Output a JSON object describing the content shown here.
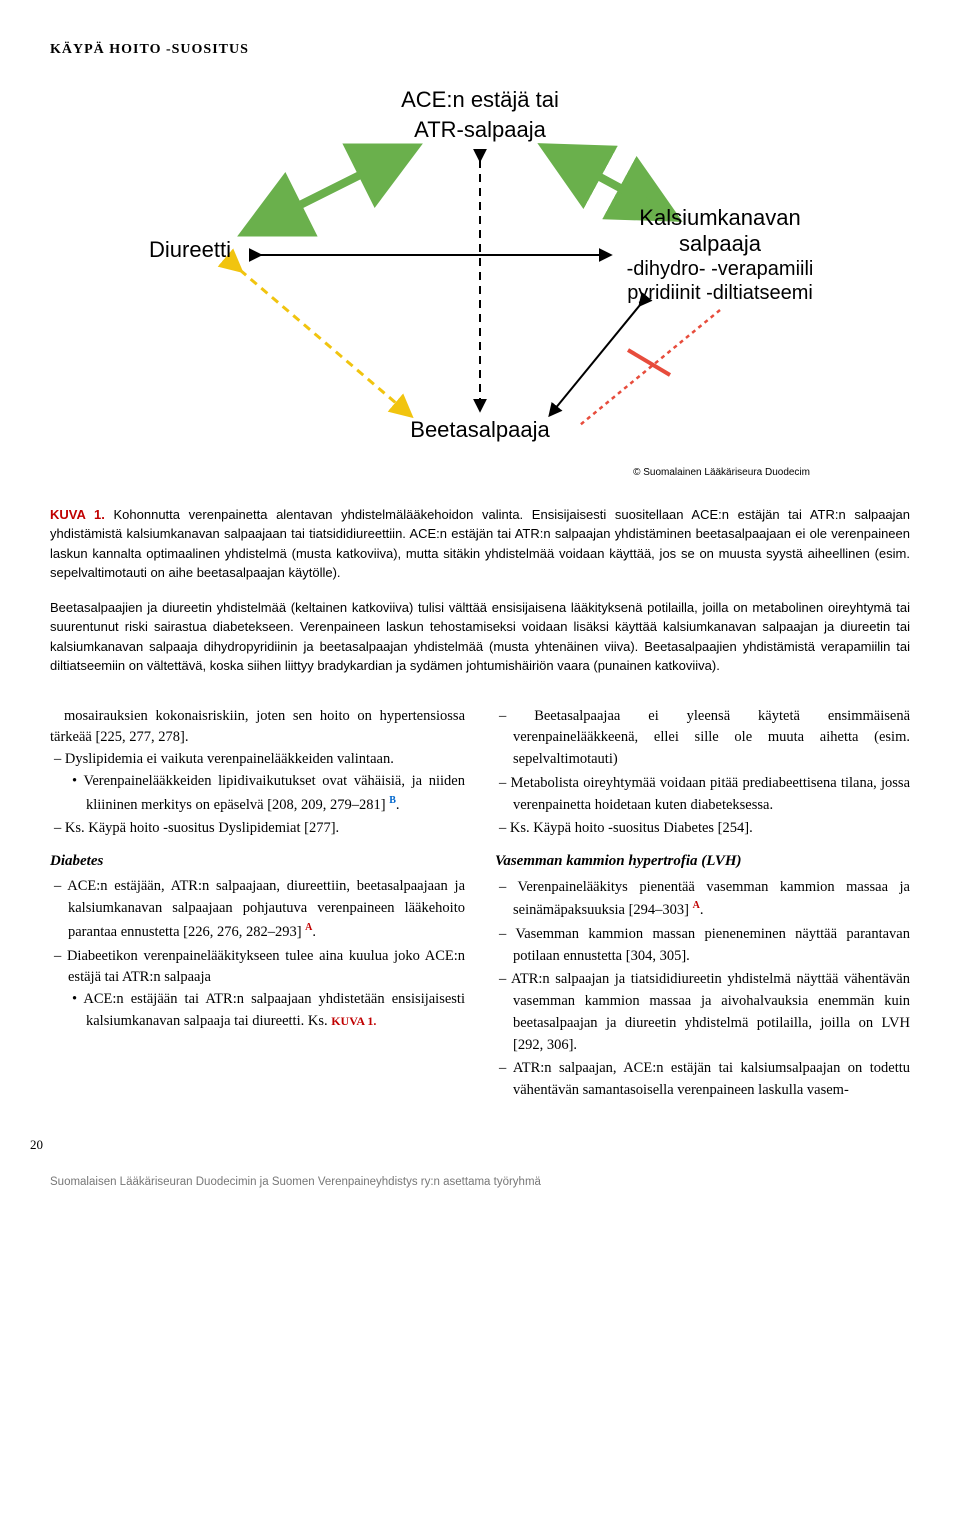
{
  "header": "KÄYPÄ HOITO -SUOSITUS",
  "diagram": {
    "top": "ACE:n estäjä tai\nATR-salpaaja",
    "left": "Diureetti",
    "right_title": "Kalsiumkanavan\nsalpaaja",
    "right_sub1": "-dihydro-  -verapamiili",
    "right_sub2": "pyridiinit  -diltiatseemi",
    "bottom": "Beetasalpaaja",
    "copyright": "© Suomalainen Lääkäriseura Duodecim",
    "colors": {
      "green": "#6ab04c",
      "yellow": "#f1c40f",
      "red": "#e74c3c",
      "black": "#000000"
    }
  },
  "caption_label": "KUVA 1.",
  "caption_text": " Kohonnutta verenpainetta alentavan yhdistelmälääkehoidon valinta. Ensisijaisesti suositellaan ACE:n estäjän tai ATR:n salpaajan yhdistämistä kalsiumkanavan salpaajaan tai tiatsididiureettiin. ACE:n estäjän tai ATR:n salpaajan yhdistäminen beetasalpaajaan ei ole verenpaineen laskun kannalta optimaalinen yhdistelmä (musta katkoviiva), mutta sitäkin yhdistelmää voidaan käyttää, jos se on muusta syystä aiheellinen (esim. sepelvaltimotauti on aihe beetasalpaajan käytölle).",
  "caption_para2": "Beetasalpaajien ja diureetin yhdistelmää (keltainen katkoviiva) tulisi välttää ensisijaisena lääkityksenä potilailla, joilla on metabolinen oireyhtymä tai suurentunut riski sairastua diabetekseen. Verenpaineen laskun tehostamiseksi voidaan lisäksi käyttää kalsiumkanavan salpaajan ja diureetin tai kalsiumkanavan salpaaja dihydropyridiinin ja beetasalpaajan yhdistelmää (musta yhtenäinen viiva). Beetasalpaajien yhdistämistä verapamiilin tai diltiatseemiin on vältettävä, koska siihen liittyy bradykardian ja sydämen johtumishäiriön vaara (punainen katkoviiva).",
  "left_col": {
    "p1": "mosairauksien kokonaisriskiin, joten sen hoito on hypertensiossa tärkeää [225, 277, 278].",
    "li1": "Dyslipidemia ei vaikuta verenpainelääkkeiden valintaan.",
    "li1_sub": "Verenpainelääkkeiden lipidivaikutukset ovat vähäisiä, ja niiden kliininen merkitys on epäselvä [208, 209, 279–281]",
    "li2": "Ks. Käypä hoito -suositus Dyslipidemiat [277].",
    "h_diabetes": "Diabetes",
    "d1": "ACE:n estäjään, ATR:n salpaajaan, diureettiin, beetasalpaajaan ja kalsiumkanavan salpaajaan pohjautuva verenpaineen lääkehoito parantaa ennustetta [226, 276, 282–293]",
    "d2": "Diabeetikon verenpainelääkitykseen tulee aina kuulua joko ACE:n estäjä tai ATR:n salpaaja",
    "d2_sub": "ACE:n estäjään tai ATR:n salpaajaan yhdistetään ensisijaisesti kalsiumkanavan salpaaja tai diureetti. Ks. ",
    "kuva_ref": "KUVA 1."
  },
  "right_col": {
    "r1": "Beetasalpaajaa ei yleensä käytetä ensimmäisenä verenpainelääkkeenä, ellei sille ole muuta aihetta (esim. sepelvaltimotauti)",
    "r2": "Metabolista oireyhtymää voidaan pitää prediabeettisena tilana, jossa verenpainetta hoidetaan kuten diabeteksessa.",
    "r3": "Ks. Käypä hoito -suositus Diabetes [254].",
    "h_lvh": "Vasemman kammion hypertrofia (LVH)",
    "l1": "Verenpainelääkitys pienentää vasemman kammion massaa ja seinämäpaksuuksia [294–303]",
    "l2": "Vasemman kammion massan pieneneminen näyttää parantavan potilaan ennustetta [304, 305].",
    "l3": "ATR:n salpaajan ja tiatsididiureetin yhdistelmä näyttää vähentävän vasemman kammion massaa ja aivohalvauksia enemmän kuin beetasalpaajan ja diureetin yhdistelmä potilailla, joilla on LVH [292, 306].",
    "l4": "ATR:n salpaajan, ACE:n estäjän tai kalsiumsalpaajan on todettu vähentävän samantasoisella verenpaineen laskulla vasem-"
  },
  "page_number": "20",
  "footer": "Suomalaisen Lääkäriseuran Duodecimin ja Suomen Verenpaineyhdistys ry:n asettama työryhmä"
}
